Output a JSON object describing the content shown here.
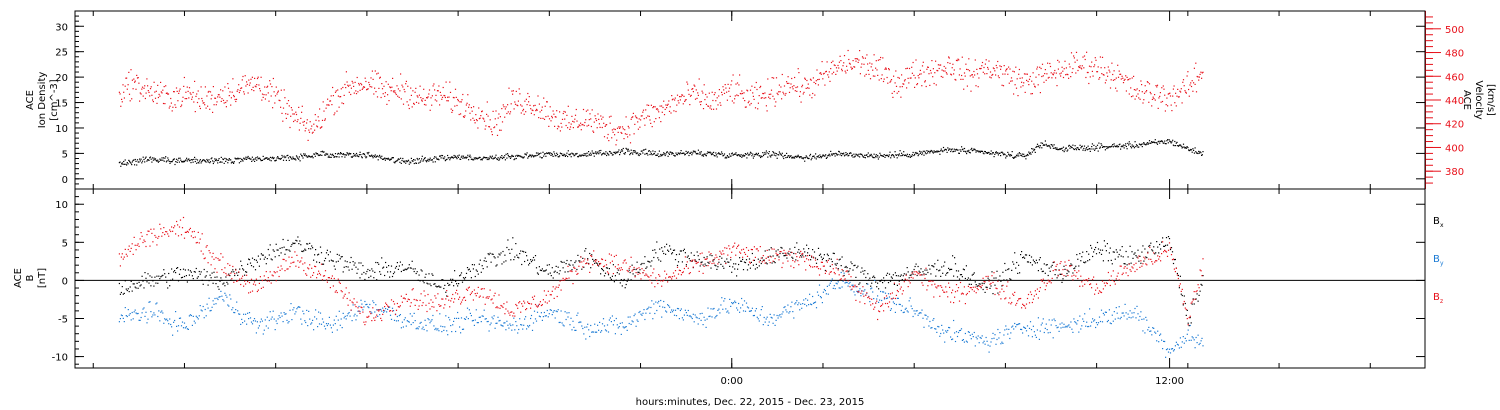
{
  "chart_data": [
    {
      "type": "scatter",
      "panel": "plasma",
      "ylabel_lines": [
        "ACE",
        "Ion Density",
        "[cm^-3]"
      ],
      "ylim": [
        -2,
        33
      ],
      "yticks": [
        0,
        5,
        10,
        15,
        20,
        25,
        30
      ],
      "y2label_lines": [
        "ACE",
        "Velocity",
        "[km/s]"
      ],
      "y2lim": [
        365,
        515
      ],
      "y2ticks": [
        380,
        400,
        420,
        440,
        460,
        480,
        500
      ],
      "colors": {
        "density": "#000000",
        "velocity": "#e8101a"
      },
      "series": [
        {
          "key": "density",
          "axis": "left",
          "x": [
            -16.8,
            -16,
            -15,
            -14,
            -13,
            -12,
            -11,
            -10,
            -9,
            -8,
            -7.5,
            -7,
            -6,
            -5,
            -4,
            -3,
            -2,
            -1,
            0,
            1,
            2,
            3,
            4,
            5,
            6,
            7,
            8,
            8.5,
            9,
            10,
            11,
            12,
            12.5,
            12.9
          ],
          "values": [
            3,
            4,
            3.7,
            3.6,
            4,
            4.3,
            5,
            4.8,
            3.5,
            4.2,
            4.4,
            4.1,
            4.5,
            5,
            4.8,
            5.5,
            5,
            5.2,
            4.8,
            5,
            4.3,
            5,
            4.6,
            5,
            5.8,
            5.2,
            4.5,
            7,
            6,
            6.3,
            6.7,
            7.5,
            6,
            5
          ]
        },
        {
          "key": "velocity",
          "axis": "right",
          "x": [
            -16.8,
            -16.5,
            -16,
            -15.5,
            -15,
            -14.5,
            -14,
            -13.5,
            -13,
            -12.5,
            -12,
            -11.5,
            -11,
            -10.5,
            -10,
            -9.5,
            -9,
            -8.5,
            -8,
            -7.5,
            -7,
            -6.5,
            -6,
            -5.5,
            -5,
            -4.5,
            -4,
            -3.5,
            -3,
            -2.5,
            -2,
            -1.5,
            -1,
            -0.5,
            0,
            0.5,
            1,
            1.5,
            2,
            2.5,
            3,
            3.5,
            4,
            4.5,
            5,
            5.5,
            6,
            6.5,
            7,
            7.5,
            8,
            8.5,
            9,
            9.5,
            10,
            10.5,
            11,
            11.5,
            12,
            12.5,
            12.9
          ],
          "values": [
            445,
            455,
            448,
            442,
            446,
            440,
            445,
            450,
            455,
            442,
            425,
            415,
            440,
            452,
            455,
            447,
            450,
            440,
            445,
            438,
            432,
            420,
            440,
            438,
            430,
            420,
            425,
            418,
            415,
            425,
            430,
            440,
            445,
            438,
            450,
            440,
            445,
            455,
            450,
            460,
            470,
            472,
            465,
            455,
            462,
            465,
            470,
            460,
            468,
            462,
            455,
            460,
            465,
            470,
            468,
            462,
            448,
            445,
            443,
            450,
            465
          ]
        }
      ],
      "legend": "none"
    },
    {
      "type": "scatter",
      "panel": "magnetic-field",
      "ylabel_lines": [
        "ACE",
        "B",
        "[nT]"
      ],
      "ylim": [
        -11.5,
        12
      ],
      "yticks": [
        -10,
        -5,
        0,
        5,
        10
      ],
      "zero_line": true,
      "legend": "right",
      "series": [
        {
          "name": "Bx",
          "legend_main": "B",
          "legend_sub": "x",
          "color": "#000000",
          "x": [
            -16.8,
            -16,
            -15,
            -14,
            -13,
            -12,
            -11,
            -10,
            -9,
            -8,
            -7,
            -6,
            -5,
            -4,
            -3,
            -2,
            -1,
            0,
            1,
            2,
            3,
            4,
            5,
            6,
            7,
            8,
            9,
            10,
            11,
            12,
            12.5,
            12.9
          ],
          "values": [
            -1,
            0,
            1,
            0,
            3,
            5,
            3,
            1,
            2,
            -1,
            2,
            4,
            1,
            3,
            0,
            4,
            3,
            2,
            3,
            4,
            2,
            0,
            1,
            2,
            -1,
            3,
            1,
            4,
            3,
            5,
            -5,
            0
          ]
        },
        {
          "name": "By",
          "legend_main": "B",
          "legend_sub": "y",
          "color": "#1a7ad4",
          "x": [
            -16.8,
            -16,
            -15,
            -14,
            -13,
            -12,
            -11,
            -10,
            -9,
            -8,
            -7,
            -6,
            -5,
            -4,
            -3,
            -2,
            -1,
            0,
            1,
            2,
            3,
            4,
            5,
            6,
            7,
            8,
            9,
            10,
            11,
            12,
            12.5,
            12.9
          ],
          "values": [
            -5,
            -4,
            -6,
            -2,
            -6,
            -4,
            -6,
            -3,
            -5,
            -6,
            -5,
            -6,
            -4,
            -6,
            -6,
            -3,
            -5,
            -3,
            -5,
            -3,
            0,
            -2,
            -4,
            -7,
            -8,
            -6,
            -6,
            -5,
            -4,
            -9,
            -7,
            -8.5
          ]
        },
        {
          "name": "Bz",
          "legend_main": "B",
          "legend_sub": "z",
          "color": "#e8101a",
          "x": [
            -16.8,
            -16,
            -15,
            -14,
            -13,
            -12,
            -11,
            -10,
            -9,
            -8,
            -7,
            -6,
            -5,
            -4,
            -3,
            -2,
            -1,
            0,
            1,
            2,
            3,
            4,
            5,
            6,
            7,
            8,
            9,
            10,
            11,
            12,
            12.5,
            12.9
          ],
          "values": [
            3,
            6,
            7,
            2,
            -1,
            3,
            0,
            -5,
            -2,
            -3,
            -1,
            -4,
            -2,
            3,
            2,
            0,
            2,
            4,
            3,
            3,
            1,
            -4,
            1,
            -2,
            0,
            -3,
            2,
            -1,
            2,
            4,
            -5,
            2
          ]
        }
      ]
    }
  ],
  "x_axis": {
    "unit": "hours, relative to 0:00 Dec. 23, 2015",
    "range": [
      -18,
      19
    ],
    "minor_ticks": [
      -17.5,
      -15,
      -12.5,
      -10,
      -7.5,
      -5,
      -2.5,
      0,
      2.5,
      5,
      7.5,
      10,
      12.5,
      15,
      17.5
    ],
    "tick_labels": [
      {
        "x": 0,
        "label": "0:00"
      },
      {
        "x": 12,
        "label": "12:00"
      }
    ],
    "xlabel": "hours:minutes, Dec. 22, 2015 - Dec. 23, 2015"
  }
}
